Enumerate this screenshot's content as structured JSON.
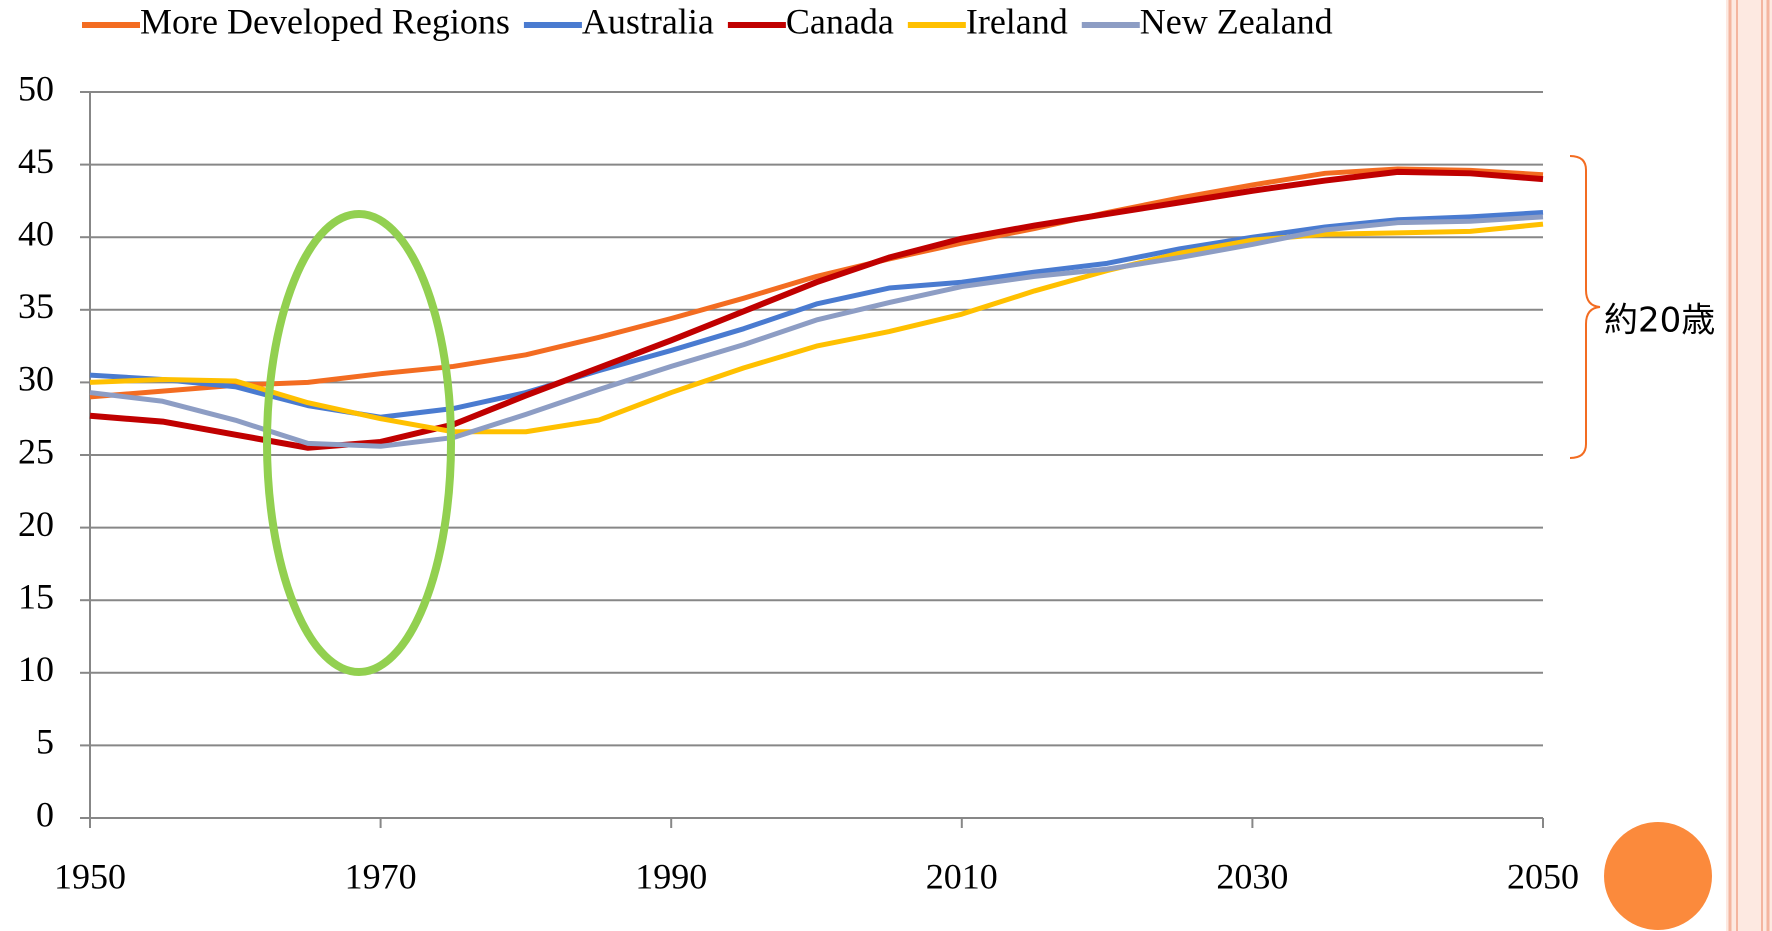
{
  "chart_data": {
    "type": "line",
    "x": [
      1950,
      1955,
      1960,
      1965,
      1970,
      1975,
      1980,
      1985,
      1990,
      1995,
      2000,
      2005,
      2010,
      2015,
      2020,
      2025,
      2030,
      2035,
      2040,
      2045,
      2050
    ],
    "series": [
      {
        "name": "More Developed Regions",
        "color": "#f36c21",
        "values": [
          29.0,
          29.4,
          29.8,
          30.0,
          30.6,
          31.1,
          31.9,
          33.1,
          34.4,
          35.8,
          37.3,
          38.5,
          39.6,
          40.6,
          41.7,
          42.7,
          43.6,
          44.4,
          44.7,
          44.6,
          44.3
        ]
      },
      {
        "name": "Australia",
        "color": "#4a7bd0",
        "values": [
          30.5,
          30.2,
          29.7,
          28.4,
          27.6,
          28.2,
          29.3,
          30.8,
          32.2,
          33.7,
          35.4,
          36.5,
          36.9,
          37.6,
          38.2,
          39.2,
          40.0,
          40.7,
          41.2,
          41.4,
          41.7
        ]
      },
      {
        "name": "Canada",
        "color": "#c00000",
        "values": [
          27.7,
          27.3,
          26.4,
          25.5,
          25.9,
          27.1,
          29.1,
          31.0,
          32.9,
          34.9,
          36.9,
          38.6,
          39.9,
          40.8,
          41.6,
          42.4,
          43.2,
          43.9,
          44.5,
          44.4,
          44.0
        ]
      },
      {
        "name": "Ireland",
        "color": "#ffc000",
        "values": [
          30.0,
          30.2,
          30.1,
          28.6,
          27.5,
          26.6,
          26.6,
          27.4,
          29.3,
          31.0,
          32.5,
          33.5,
          34.7,
          36.3,
          37.7,
          38.9,
          39.8,
          40.2,
          40.3,
          40.4,
          40.9
        ]
      },
      {
        "name": "New Zealand",
        "color": "#8d9dc4",
        "values": [
          29.3,
          28.7,
          27.4,
          25.8,
          25.6,
          26.2,
          27.8,
          29.5,
          31.1,
          32.6,
          34.3,
          35.5,
          36.6,
          37.3,
          37.8,
          38.6,
          39.5,
          40.5,
          41.0,
          41.1,
          41.4
        ]
      }
    ],
    "xlim": [
      1950,
      2050
    ],
    "xticks": [
      1950,
      1970,
      1990,
      2010,
      2030,
      2050
    ],
    "ylim": [
      0,
      50
    ],
    "yticks": [
      0,
      5,
      10,
      15,
      20,
      25,
      30,
      35,
      40,
      45,
      50
    ],
    "grid": true,
    "legend": "top",
    "annotation": "約20歳"
  }
}
